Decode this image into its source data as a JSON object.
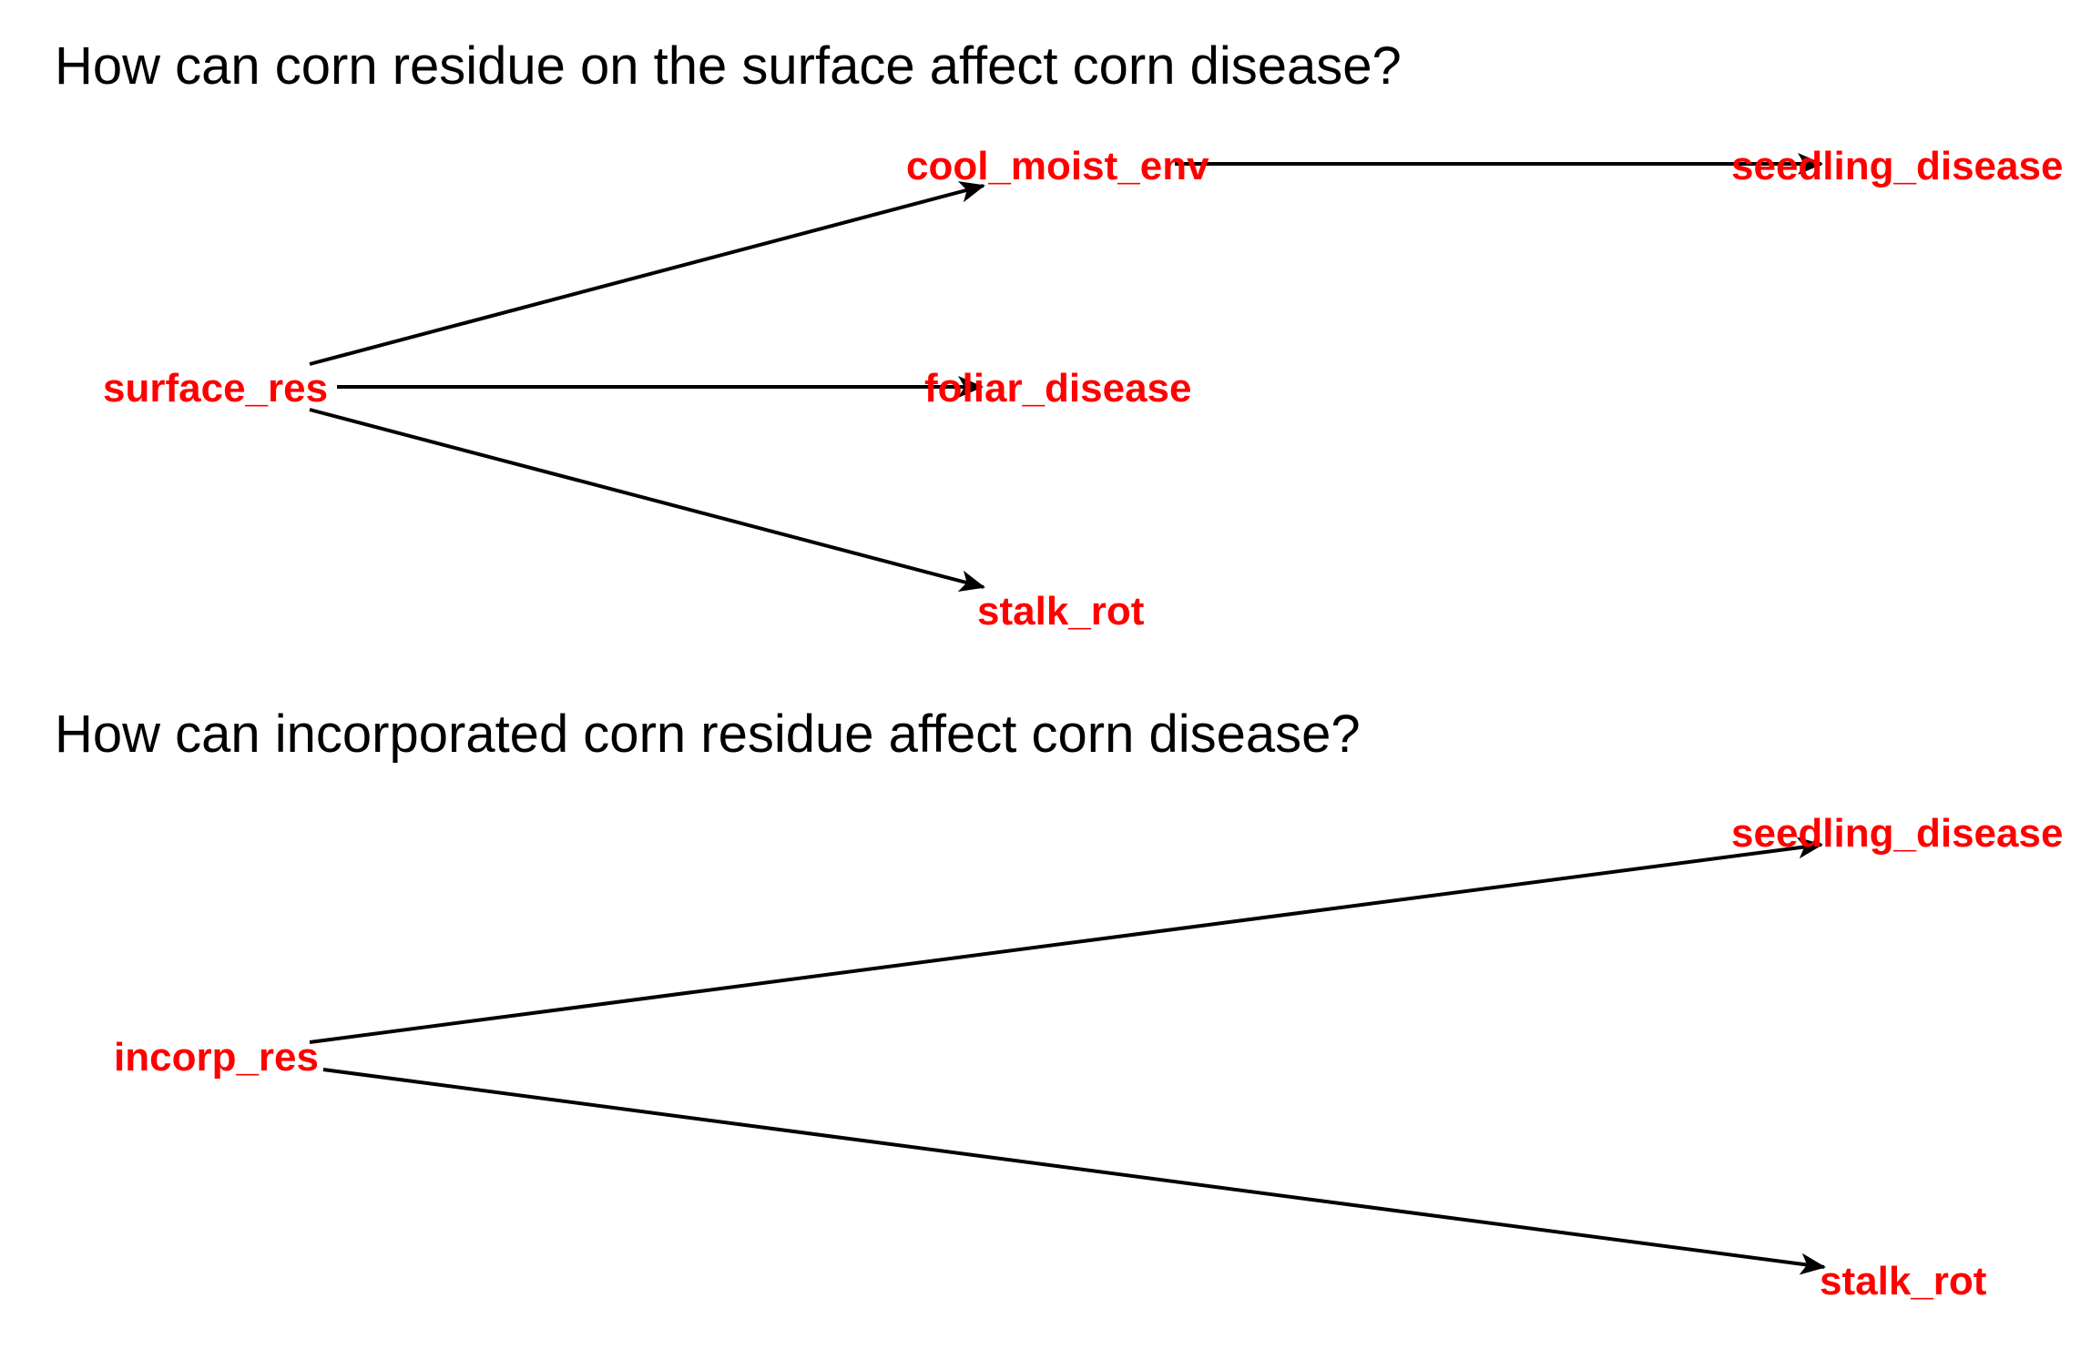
{
  "colors": {
    "node_label": "#ff0000",
    "edge": "#000000",
    "title": "#000000",
    "background": "#ffffff"
  },
  "panels": [
    {
      "title": "How can corn residue on the surface affect corn disease?",
      "nodes": {
        "surface_res": "surface_res",
        "cool_moist_env": "cool_moist_env",
        "foliar_disease": "foliar_disease",
        "stalk_rot": "stalk_rot",
        "seedling_disease": "seedling_disease"
      },
      "edges": [
        {
          "from": "surface_res",
          "to": "cool_moist_env"
        },
        {
          "from": "surface_res",
          "to": "foliar_disease"
        },
        {
          "from": "surface_res",
          "to": "stalk_rot"
        },
        {
          "from": "cool_moist_env",
          "to": "seedling_disease"
        }
      ]
    },
    {
      "title": "How can incorporated corn residue affect corn disease?",
      "nodes": {
        "incorp_res": "incorp_res",
        "seedling_disease": "seedling_disease",
        "stalk_rot": "stalk_rot"
      },
      "edges": [
        {
          "from": "incorp_res",
          "to": "seedling_disease"
        },
        {
          "from": "incorp_res",
          "to": "stalk_rot"
        }
      ]
    }
  ]
}
